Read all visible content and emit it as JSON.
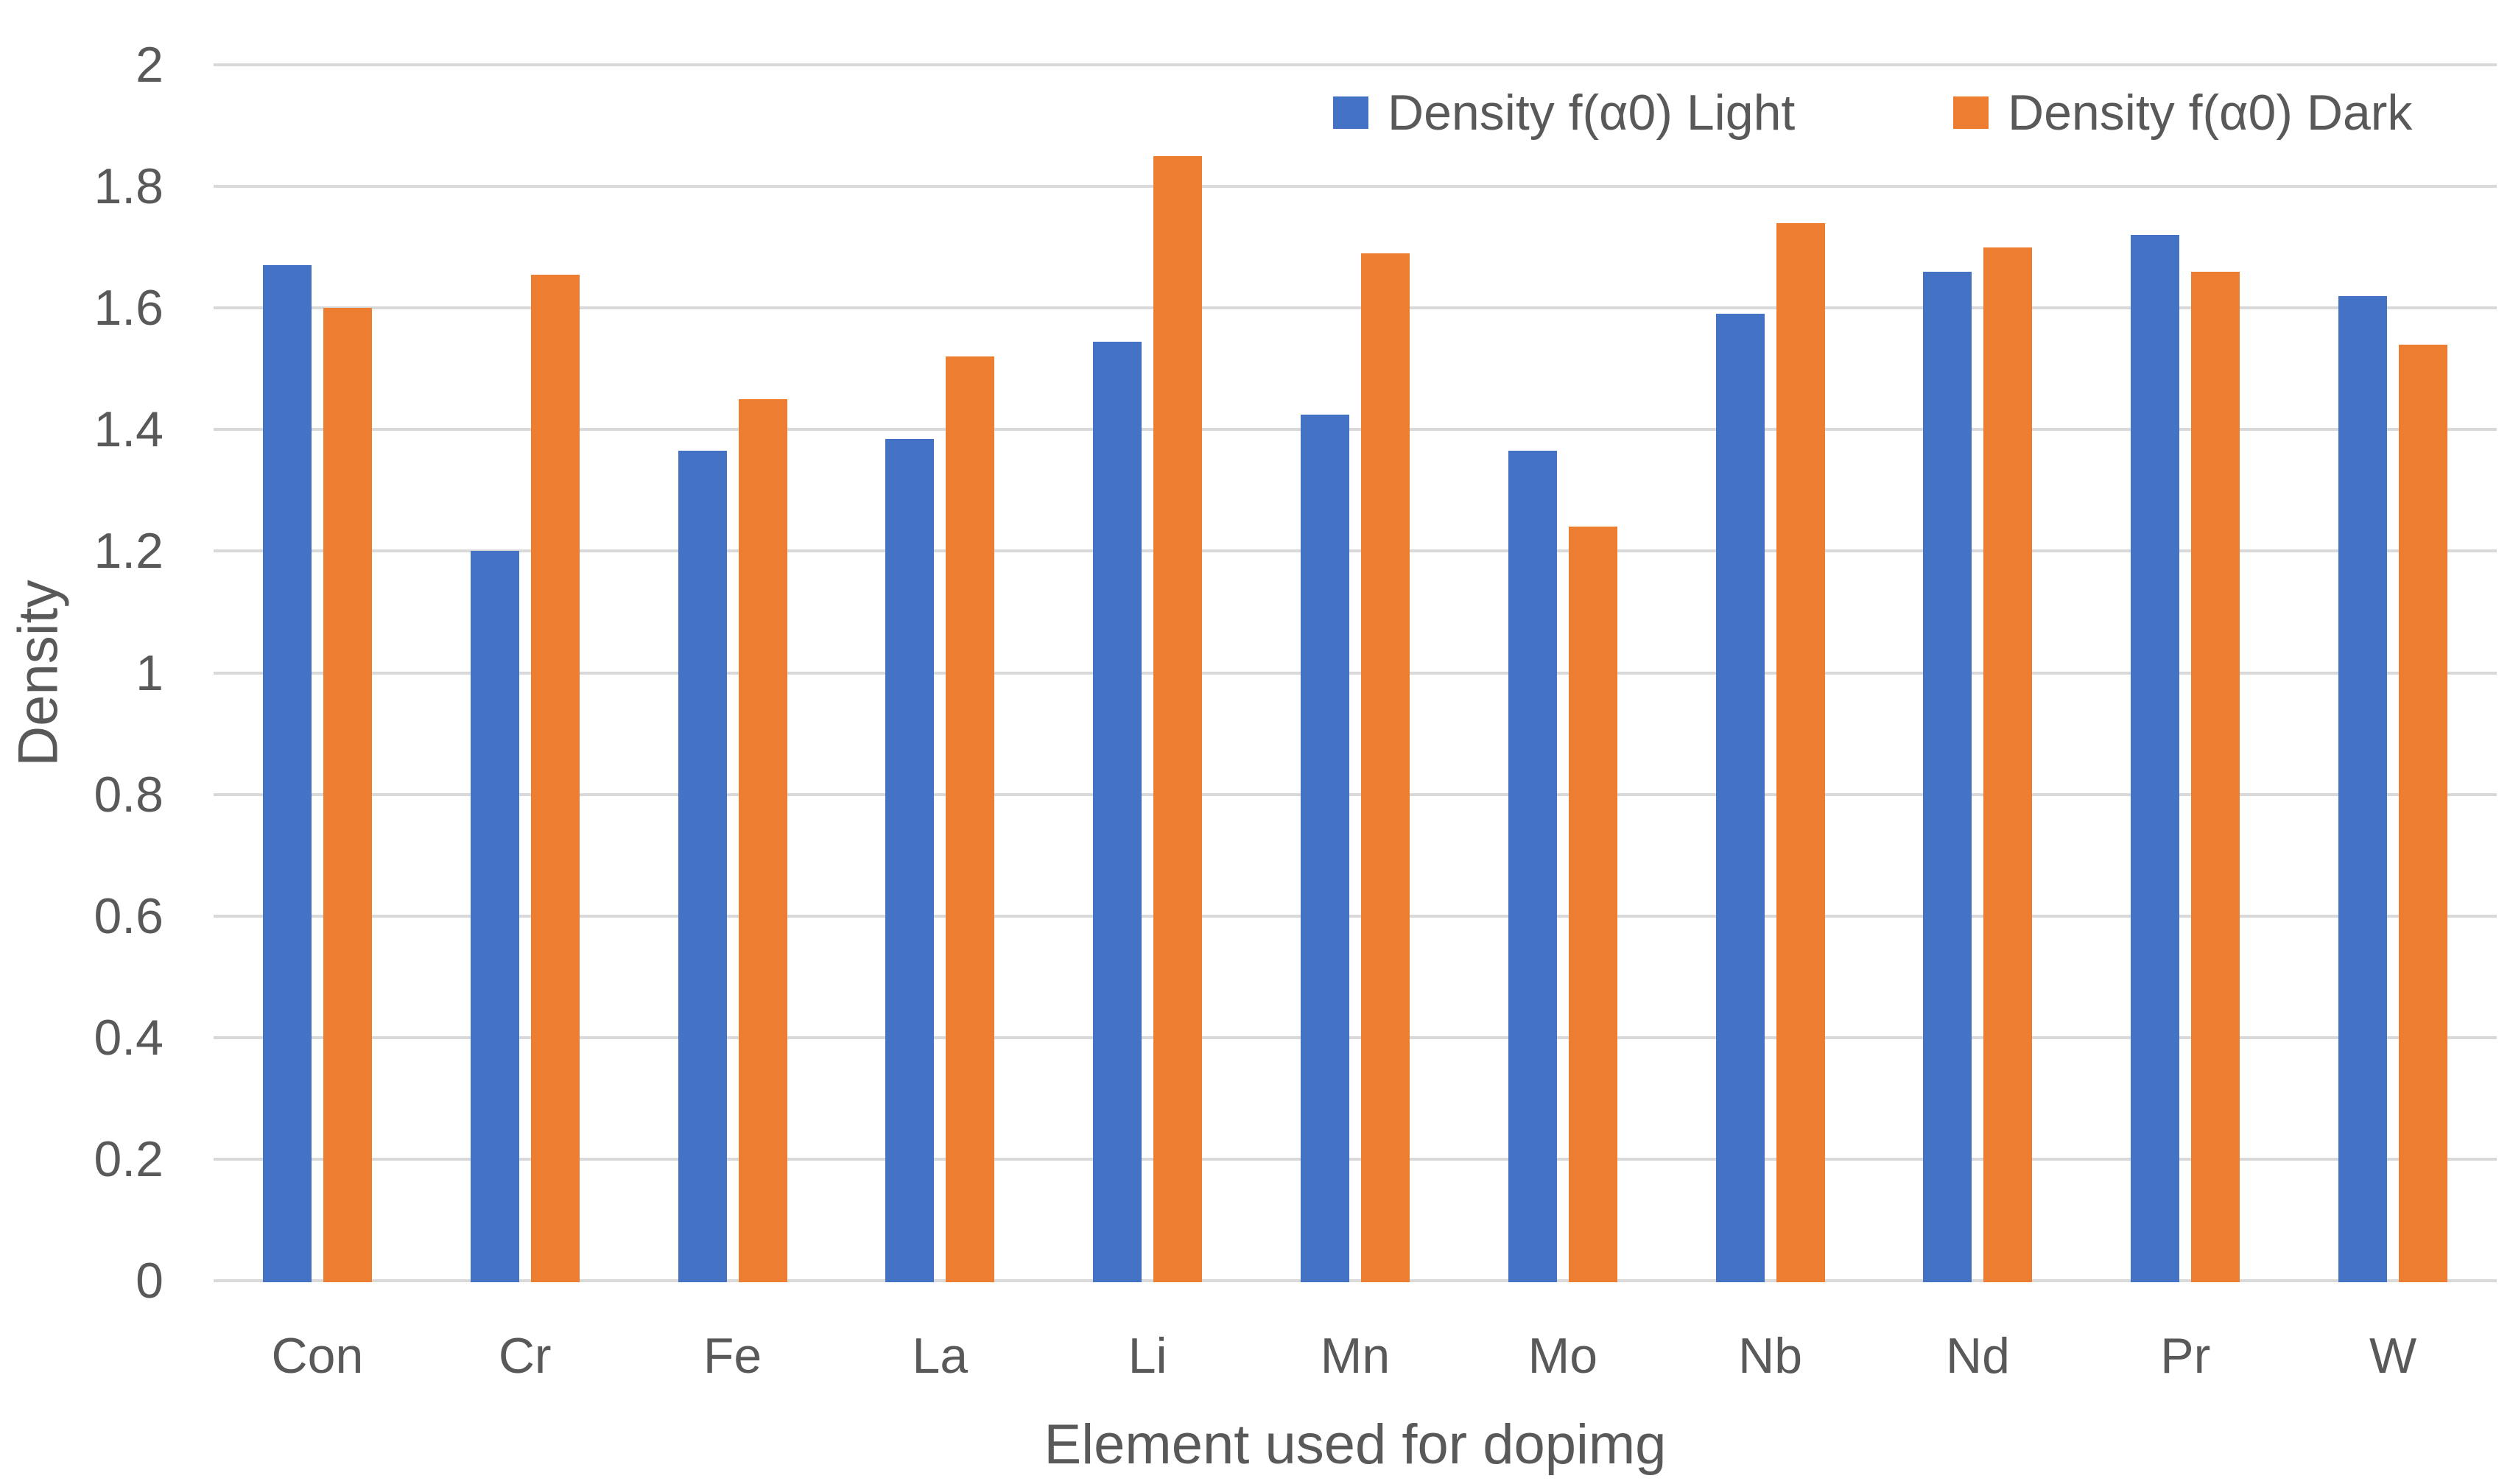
{
  "chart_data": {
    "type": "bar",
    "title": "",
    "xlabel": "Element used for dopimg",
    "ylabel": "Density",
    "categories": [
      "Con",
      "Cr",
      "Fe",
      "La",
      "Li",
      "Mn",
      "Mo",
      "Nb",
      "Nd",
      "Pr",
      "W"
    ],
    "series": [
      {
        "name": "Density f(α0) Light",
        "color": "#4472C4",
        "values": [
          1.67,
          1.2,
          1.365,
          1.385,
          1.545,
          1.425,
          1.365,
          1.59,
          1.66,
          1.72,
          1.62
        ]
      },
      {
        "name": "Density f(α0) Dark",
        "color": "#ED7D31",
        "values": [
          1.6,
          1.655,
          1.45,
          1.52,
          1.85,
          1.69,
          1.24,
          1.74,
          1.7,
          1.66,
          1.54
        ]
      }
    ],
    "ylim": [
      0,
      2
    ],
    "ytick_step": 0.2,
    "ytick_labels": [
      "0",
      "0.2",
      "0.4",
      "0.6",
      "0.8",
      "1",
      "1.2",
      "1.4",
      "1.6",
      "1.8",
      "2"
    ],
    "grid": "horizontal",
    "legend_position": "top-right",
    "gridline_color": "#D9D9D9",
    "text_color": "#595959",
    "background_color": "#FFFFFF"
  }
}
